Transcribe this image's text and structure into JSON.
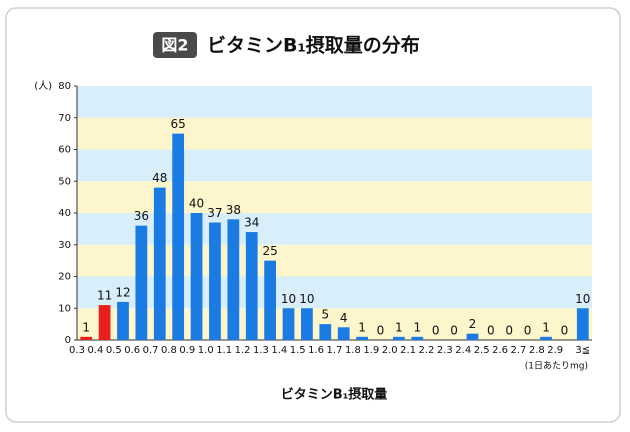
{
  "chart_data": {
    "type": "bar",
    "figure_label": "図2",
    "title": "ビタミンB₁摂取量の分布",
    "y_label": "(人)",
    "x_label": "ビタミンB₁摂取量",
    "x_unit": "(1日あたりmg)",
    "categories": [
      "0.3",
      "0.4",
      "0.5",
      "0.6",
      "0.7",
      "0.8",
      "0.9",
      "1.0",
      "1.1",
      "1.2",
      "1.3",
      "1.4",
      "1.5",
      "1.6",
      "1.7",
      "1.8",
      "1.9",
      "2.0",
      "2.1",
      "2.2",
      "2.3",
      "2.4",
      "2.5",
      "2.6",
      "2.7",
      "2.8",
      "2.9",
      "3≦"
    ],
    "values": [
      1,
      11,
      12,
      36,
      48,
      65,
      40,
      37,
      38,
      34,
      25,
      10,
      10,
      5,
      4,
      1,
      0,
      1,
      1,
      0,
      0,
      2,
      0,
      0,
      0,
      1,
      0,
      10
    ],
    "colors": [
      "#e8201c",
      "#e8201c",
      "#1a7be3",
      "#1a7be3",
      "#1a7be3",
      "#1a7be3",
      "#1a7be3",
      "#1a7be3",
      "#1a7be3",
      "#1a7be3",
      "#1a7be3",
      "#1a7be3",
      "#1a7be3",
      "#1a7be3",
      "#1a7be3",
      "#1a7be3",
      "#1a7be3",
      "#1a7be3",
      "#1a7be3",
      "#1a7be3",
      "#1a7be3",
      "#1a7be3",
      "#1a7be3",
      "#1a7be3",
      "#1a7be3",
      "#1a7be3",
      "#1a7be3",
      "#1a7be3"
    ],
    "ylim": [
      0,
      80
    ],
    "yticks": [
      0,
      10,
      20,
      30,
      40,
      50,
      60,
      70,
      80
    ],
    "band_colors": [
      "#fdf6cc",
      "#d8eefa"
    ]
  }
}
